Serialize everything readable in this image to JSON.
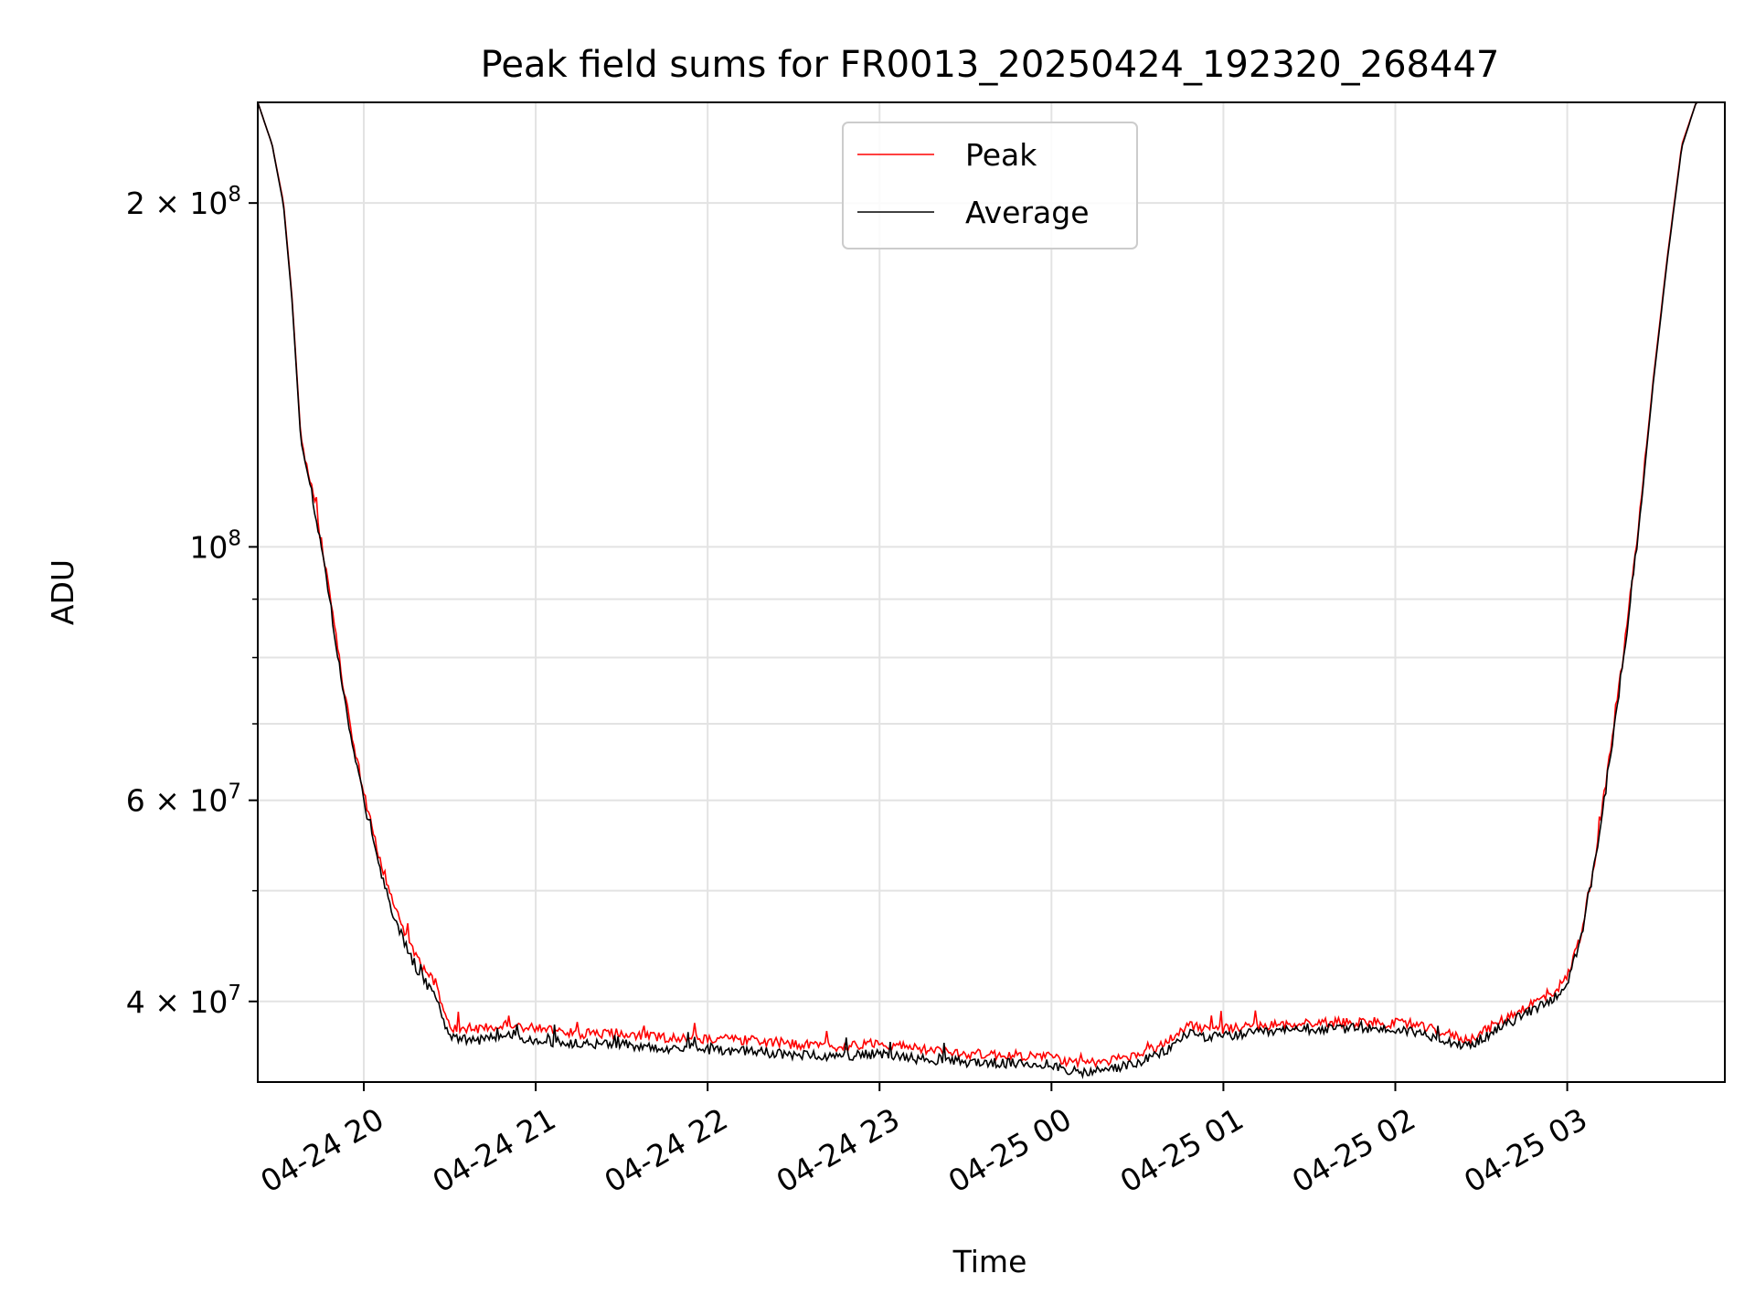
{
  "chart_data": {
    "type": "line",
    "title": "Peak field sums for FR0013_20250424_192320_268447",
    "xlabel": "Time",
    "ylabel": "ADU",
    "yscale": "log",
    "xlim": [
      "2025-04-24 19:23",
      "2025-04-25 03:55"
    ],
    "ylim": [
      34000000,
      245000000
    ],
    "grid": true,
    "legend_position": "top-center",
    "x_ticks": [
      {
        "value": "2025-04-24 20:00",
        "label": "04-24 20"
      },
      {
        "value": "2025-04-24 21:00",
        "label": "04-24 21"
      },
      {
        "value": "2025-04-24 22:00",
        "label": "04-24 22"
      },
      {
        "value": "2025-04-24 23:00",
        "label": "04-24 23"
      },
      {
        "value": "2025-04-25 00:00",
        "label": "04-25 00"
      },
      {
        "value": "2025-04-25 01:00",
        "label": "04-25 01"
      },
      {
        "value": "2025-04-25 02:00",
        "label": "04-25 02"
      },
      {
        "value": "2025-04-25 03:00",
        "label": "04-25 03"
      }
    ],
    "y_major_ticks": [
      {
        "value": 40000000,
        "base": "4 × 10",
        "exp": "7"
      },
      {
        "value": 60000000,
        "base": "6 × 10",
        "exp": "7"
      },
      {
        "value": 100000000,
        "base": "10",
        "exp": "8"
      },
      {
        "value": 200000000,
        "base": "2 × 10",
        "exp": "8"
      }
    ],
    "y_minor_ticks": [
      50000000,
      70000000,
      80000000,
      90000000
    ],
    "series": [
      {
        "name": "Peak",
        "color": "#ff0000",
        "points": [
          [
            "2025-04-24 19:23",
            245000000
          ],
          [
            "2025-04-24 19:28",
            225000000
          ],
          [
            "2025-04-24 19:32",
            200000000
          ],
          [
            "2025-04-24 19:35",
            165000000
          ],
          [
            "2025-04-24 19:38",
            125000000
          ],
          [
            "2025-04-24 19:42",
            112000000
          ],
          [
            "2025-04-24 19:47",
            95000000
          ],
          [
            "2025-04-24 19:52",
            78000000
          ],
          [
            "2025-04-24 19:56",
            68000000
          ],
          [
            "2025-04-24 20:00",
            61000000
          ],
          [
            "2025-04-24 20:05",
            54000000
          ],
          [
            "2025-04-24 20:10",
            49000000
          ],
          [
            "2025-04-24 20:15",
            45500000
          ],
          [
            "2025-04-24 20:20",
            43000000
          ],
          [
            "2025-04-24 20:25",
            41500000
          ],
          [
            "2025-04-24 20:30",
            38000000
          ],
          [
            "2025-04-24 20:40",
            37800000
          ],
          [
            "2025-04-24 20:50",
            38200000
          ],
          [
            "2025-04-24 21:00",
            37900000
          ],
          [
            "2025-04-24 21:15",
            37500000
          ],
          [
            "2025-04-24 21:30",
            37500000
          ],
          [
            "2025-04-24 21:45",
            37200000
          ],
          [
            "2025-04-24 22:00",
            37100000
          ],
          [
            "2025-04-24 22:15",
            37000000
          ],
          [
            "2025-04-24 22:30",
            36700000
          ],
          [
            "2025-04-24 22:45",
            36500000
          ],
          [
            "2025-04-24 23:00",
            36800000
          ],
          [
            "2025-04-24 23:15",
            36300000
          ],
          [
            "2025-04-24 23:30",
            36000000
          ],
          [
            "2025-04-24 23:45",
            35900000
          ],
          [
            "2025-04-25 00:00",
            35800000
          ],
          [
            "2025-04-25 00:10",
            35200000
          ],
          [
            "2025-04-25 00:20",
            35500000
          ],
          [
            "2025-04-25 00:30",
            35900000
          ],
          [
            "2025-04-25 00:40",
            36800000
          ],
          [
            "2025-04-25 00:48",
            38200000
          ],
          [
            "2025-04-25 00:55",
            37800000
          ],
          [
            "2025-04-25 01:10",
            38000000
          ],
          [
            "2025-04-25 01:30",
            38300000
          ],
          [
            "2025-04-25 01:50",
            38400000
          ],
          [
            "2025-04-25 02:05",
            38200000
          ],
          [
            "2025-04-25 02:15",
            37700000
          ],
          [
            "2025-04-25 02:25",
            37000000
          ],
          [
            "2025-04-25 02:35",
            38200000
          ],
          [
            "2025-04-25 02:45",
            39500000
          ],
          [
            "2025-04-25 02:55",
            40700000
          ],
          [
            "2025-04-25 03:00",
            42000000
          ],
          [
            "2025-04-25 03:05",
            46000000
          ],
          [
            "2025-04-25 03:10",
            54000000
          ],
          [
            "2025-04-25 03:15",
            66000000
          ],
          [
            "2025-04-25 03:20",
            82000000
          ],
          [
            "2025-04-25 03:25",
            105000000
          ],
          [
            "2025-04-25 03:30",
            140000000
          ],
          [
            "2025-04-25 03:35",
            180000000
          ],
          [
            "2025-04-25 03:40",
            225000000
          ],
          [
            "2025-04-25 03:45",
            245000000
          ],
          [
            "2025-04-25 03:55",
            245000000
          ]
        ]
      },
      {
        "name": "Average",
        "color": "#000000",
        "points": [
          [
            "2025-04-24 19:23",
            245000000
          ],
          [
            "2025-04-24 19:28",
            225000000
          ],
          [
            "2025-04-24 19:32",
            199000000
          ],
          [
            "2025-04-24 19:35",
            164000000
          ],
          [
            "2025-04-24 19:38",
            124000000
          ],
          [
            "2025-04-24 19:42",
            111000000
          ],
          [
            "2025-04-24 19:47",
            94000000
          ],
          [
            "2025-04-24 19:52",
            77000000
          ],
          [
            "2025-04-24 19:56",
            67000000
          ],
          [
            "2025-04-24 20:00",
            60000000
          ],
          [
            "2025-04-24 20:05",
            53000000
          ],
          [
            "2025-04-24 20:10",
            48000000
          ],
          [
            "2025-04-24 20:15",
            44500000
          ],
          [
            "2025-04-24 20:20",
            42000000
          ],
          [
            "2025-04-24 20:25",
            40500000
          ],
          [
            "2025-04-24 20:30",
            37200000
          ],
          [
            "2025-04-24 20:40",
            37000000
          ],
          [
            "2025-04-24 20:50",
            37300000
          ],
          [
            "2025-04-24 21:00",
            37000000
          ],
          [
            "2025-04-24 21:15",
            36700000
          ],
          [
            "2025-04-24 21:30",
            36700000
          ],
          [
            "2025-04-24 21:45",
            36400000
          ],
          [
            "2025-04-24 22:00",
            36300000
          ],
          [
            "2025-04-24 22:15",
            36200000
          ],
          [
            "2025-04-24 22:30",
            35900000
          ],
          [
            "2025-04-24 22:45",
            35800000
          ],
          [
            "2025-04-24 23:00",
            36000000
          ],
          [
            "2025-04-24 23:15",
            35600000
          ],
          [
            "2025-04-24 23:30",
            35400000
          ],
          [
            "2025-04-24 23:45",
            35300000
          ],
          [
            "2025-04-25 00:00",
            35200000
          ],
          [
            "2025-04-25 00:10",
            34600000
          ],
          [
            "2025-04-25 00:20",
            34900000
          ],
          [
            "2025-04-25 00:30",
            35300000
          ],
          [
            "2025-04-25 00:40",
            36200000
          ],
          [
            "2025-04-25 00:48",
            37600000
          ],
          [
            "2025-04-25 00:55",
            37200000
          ],
          [
            "2025-04-25 01:10",
            37500000
          ],
          [
            "2025-04-25 01:30",
            37800000
          ],
          [
            "2025-04-25 01:50",
            37900000
          ],
          [
            "2025-04-25 02:05",
            37700000
          ],
          [
            "2025-04-25 02:15",
            37200000
          ],
          [
            "2025-04-25 02:25",
            36500000
          ],
          [
            "2025-04-25 02:35",
            37700000
          ],
          [
            "2025-04-25 02:45",
            39000000
          ],
          [
            "2025-04-25 02:55",
            40200000
          ],
          [
            "2025-04-25 03:00",
            41500000
          ],
          [
            "2025-04-25 03:05",
            45500000
          ],
          [
            "2025-04-25 03:10",
            53500000
          ],
          [
            "2025-04-25 03:15",
            65000000
          ],
          [
            "2025-04-25 03:20",
            81000000
          ],
          [
            "2025-04-25 03:25",
            104000000
          ],
          [
            "2025-04-25 03:30",
            139000000
          ],
          [
            "2025-04-25 03:35",
            179000000
          ],
          [
            "2025-04-25 03:40",
            224000000
          ],
          [
            "2025-04-25 03:45",
            245000000
          ],
          [
            "2025-04-25 03:55",
            245000000
          ]
        ]
      }
    ]
  }
}
